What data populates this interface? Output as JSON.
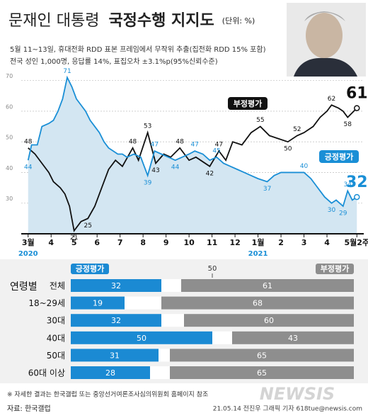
{
  "header": {
    "title": [
      "문재인 대통령",
      "국정수행 지지도"
    ],
    "unit": "(단위: %)",
    "subtitle": [
      "5월 11~13일, 휴대전화 RDD 표본 프레임에서 무작위 추출(집전화 RDD 15% 포함)",
      "전국 성인 1,000명, 응답률 14%, 표집오차 ±3.1%p(95%신뢰수준)"
    ]
  },
  "chart_data": [
    {
      "type": "line",
      "xlim": [
        -0.3,
        14.6
      ],
      "ylim": [
        20,
        72
      ],
      "yticks": [
        30,
        40,
        50,
        60,
        70
      ],
      "grid": true,
      "xticks": [
        {
          "value": 0,
          "label": "3월"
        },
        {
          "value": 1,
          "label": "4"
        },
        {
          "value": 2,
          "label": "5"
        },
        {
          "value": 3,
          "label": "6"
        },
        {
          "value": 4,
          "label": "7"
        },
        {
          "value": 5,
          "label": "8"
        },
        {
          "value": 6,
          "label": "9"
        },
        {
          "value": 7,
          "label": "10"
        },
        {
          "value": 8,
          "label": "11"
        },
        {
          "value": 9,
          "label": "12"
        },
        {
          "value": 10,
          "label": "1월"
        },
        {
          "value": 11,
          "label": "2"
        },
        {
          "value": 12,
          "label": "3"
        },
        {
          "value": 13,
          "label": "4"
        },
        {
          "value": 14.3,
          "label": "5월2주"
        }
      ],
      "year_labels": [
        {
          "value": 0,
          "label": "2020"
        },
        {
          "value": 10,
          "label": "2021"
        }
      ],
      "series": [
        {
          "name": "부정평가",
          "color": "#111111",
          "x": [
            0,
            0.3,
            0.6,
            0.9,
            1.1,
            1.4,
            1.6,
            1.8,
            2.0,
            2.3,
            2.6,
            2.9,
            3.2,
            3.5,
            3.8,
            4.1,
            4.55,
            4.8,
            5.2,
            5.55,
            5.9,
            6.2,
            6.6,
            7.0,
            7.3,
            7.9,
            8.3,
            8.6,
            8.9,
            9.3,
            9.7,
            10.1,
            10.5,
            10.9,
            11.3,
            11.7,
            12.0,
            12.4,
            12.7,
            13.0,
            13.2,
            13.5,
            13.7,
            13.9,
            14.3
          ],
          "values": [
            48,
            46,
            43,
            40,
            37,
            35,
            33,
            29,
            21,
            24,
            25,
            29,
            35,
            41,
            44,
            42,
            48,
            44,
            53,
            43,
            46,
            45,
            48,
            44,
            45,
            42,
            47,
            44,
            50,
            49,
            53,
            55,
            52,
            51,
            50,
            52,
            53,
            55,
            58,
            60,
            62,
            61,
            60,
            58,
            61
          ],
          "value_labels": [
            "48",
            null,
            null,
            null,
            null,
            null,
            null,
            null,
            "21",
            null,
            "25",
            null,
            null,
            null,
            null,
            null,
            "48",
            null,
            "53",
            "43",
            null,
            null,
            "48",
            null,
            null,
            "42",
            "47",
            null,
            null,
            null,
            null,
            "55",
            null,
            null,
            "50",
            "52",
            null,
            null,
            null,
            null,
            "62",
            null,
            null,
            "58",
            "61"
          ]
        },
        {
          "name": "긍정평가",
          "color": "#1a8fd6",
          "area_color": "#d3e6f2",
          "x": [
            0,
            0.15,
            0.4,
            0.6,
            0.9,
            1.1,
            1.3,
            1.5,
            1.7,
            1.9,
            2.1,
            2.3,
            2.5,
            2.7,
            2.9,
            3.1,
            3.3,
            3.5,
            3.7,
            3.9,
            4.1,
            4.3,
            4.6,
            4.9,
            5.2,
            5.5,
            5.8,
            6.1,
            6.4,
            6.7,
            7.0,
            7.25,
            7.6,
            7.9,
            8.2,
            8.5,
            8.8,
            9.1,
            9.4,
            9.7,
            10.0,
            10.4,
            10.7,
            11.0,
            11.3,
            11.6,
            12.0,
            12.3,
            12.5,
            12.7,
            12.9,
            13.2,
            13.4,
            13.7,
            13.9,
            14.1,
            14.3
          ],
          "values": [
            44,
            49,
            49,
            55,
            56,
            57,
            60,
            64,
            71,
            68,
            64,
            62,
            60,
            57,
            55,
            53,
            50,
            48,
            47,
            46,
            46,
            45,
            46,
            45,
            39,
            47,
            46,
            45,
            44,
            45,
            46,
            47,
            46,
            44,
            45,
            43,
            42,
            41,
            40,
            39,
            38,
            37,
            39,
            40,
            40,
            40,
            40,
            38,
            36,
            34,
            32,
            30,
            31,
            29,
            34,
            31,
            32
          ],
          "value_labels": [
            "44",
            null,
            null,
            null,
            null,
            null,
            null,
            null,
            "71",
            null,
            null,
            null,
            null,
            null,
            null,
            null,
            null,
            null,
            null,
            null,
            null,
            null,
            null,
            null,
            "39",
            "47",
            null,
            null,
            "44",
            null,
            null,
            "47",
            null,
            null,
            "45",
            null,
            null,
            null,
            null,
            null,
            null,
            "37",
            null,
            null,
            null,
            null,
            "40",
            null,
            null,
            null,
            null,
            "30",
            null,
            "29",
            "34",
            null,
            "32"
          ]
        }
      ]
    },
    {
      "type": "bar",
      "group_label": "연령별",
      "xlim": [
        0,
        100
      ],
      "xticks": [
        50
      ],
      "categories": [
        "전체",
        "18~29세",
        "30대",
        "40대",
        "50대",
        "60대 이상"
      ],
      "series": [
        {
          "name": "긍정평가",
          "color": "#1b8ad3",
          "anchor": "start",
          "values": [
            32,
            19,
            32,
            50,
            31,
            28
          ]
        },
        {
          "name": "부정평가",
          "color": "#8e8e8e",
          "anchor": "end",
          "values": [
            61,
            68,
            60,
            43,
            65,
            65
          ]
        }
      ]
    }
  ],
  "footer": {
    "note": "※ 자세한 결과는 한국갤럽 또는 중앙선거여론조사심의위원회 홈페이지 참조",
    "source": "자료: 한국갤럽",
    "credit": "21.05.14 전진우 그래픽 기자 618tue@newsis.com",
    "logo": "NEWSIS"
  }
}
